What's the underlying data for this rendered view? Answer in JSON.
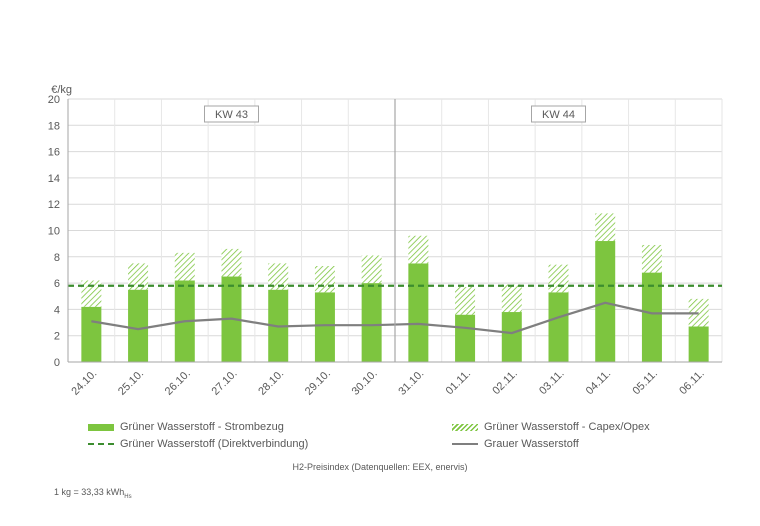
{
  "chart_data": {
    "type": "bar",
    "ylabel": "€/kg",
    "ylim": [
      0,
      20
    ],
    "yticks": [
      0,
      2,
      4,
      6,
      8,
      10,
      12,
      14,
      16,
      18,
      20
    ],
    "grid": true,
    "categories": [
      "24.10.",
      "25.10.",
      "26.10.",
      "27.10.",
      "28.10.",
      "29.10.",
      "30.10.",
      "31.10.",
      "01.11.",
      "02.11.",
      "03.11.",
      "04.11.",
      "05.11.",
      "06.11."
    ],
    "series": [
      {
        "name": "Grüner Wasserstoff - Strombezug",
        "kind": "stacked-bar",
        "color": "#7DC53F",
        "values": [
          4.2,
          5.5,
          6.2,
          6.5,
          5.5,
          5.3,
          6.0,
          7.5,
          3.6,
          3.8,
          5.3,
          9.2,
          6.8,
          2.7
        ]
      },
      {
        "name": "Grüner Wasserstoff - Capex/Opex",
        "kind": "stacked-bar-hatched",
        "color": "#7DC53F",
        "values": [
          2.0,
          2.0,
          2.1,
          2.1,
          2.0,
          2.0,
          2.1,
          2.1,
          2.1,
          2.1,
          2.1,
          2.1,
          2.1,
          2.1
        ]
      },
      {
        "name": "Grüner Wasserstoff (Direktverbindung)",
        "kind": "dashed-line",
        "color": "#3C8D2F",
        "values": [
          5.8,
          5.8,
          5.8,
          5.8,
          5.8,
          5.8,
          5.8,
          5.8,
          5.8,
          5.8,
          5.8,
          5.8,
          5.8,
          5.8
        ]
      },
      {
        "name": "Grauer Wasserstoff",
        "kind": "line",
        "color": "#7F7F7F",
        "values": [
          3.1,
          2.5,
          3.1,
          3.3,
          2.7,
          2.8,
          2.8,
          2.9,
          2.6,
          2.2,
          3.4,
          4.5,
          3.7,
          3.7
        ]
      }
    ],
    "annotations": [
      {
        "text": "KW 43",
        "category_start": 0,
        "category_end": 6
      },
      {
        "text": "KW 44",
        "category_start": 7,
        "category_end": 13
      }
    ],
    "legend_position": "bottom"
  },
  "source_note": "H2-Preisindex (Datenquellen: EEX, enervis)",
  "footnote": {
    "main": "1 kg = 33,33 kWh",
    "sub": "Hs"
  }
}
